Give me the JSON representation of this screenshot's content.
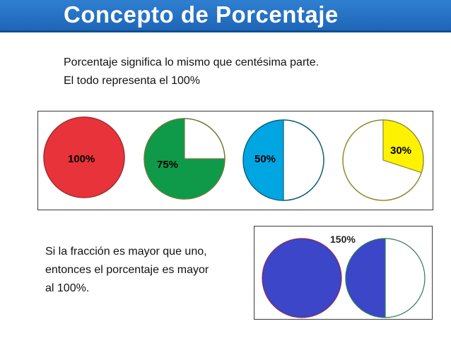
{
  "slide": {
    "title": "Concepto de Porcentaje",
    "intro_lines": [
      "Porcentaje significa lo mismo que centésima parte.",
      "El todo representa el 100%"
    ],
    "pies": [
      {
        "label": "100%",
        "percent": 100,
        "fill": "#e8333a",
        "stroke": "#9b2c2c",
        "label_color": "#222222"
      },
      {
        "label": "75%",
        "percent": 75,
        "fill": "#0f9a49",
        "stroke": "#6f7a3a",
        "label_color": "#222222"
      },
      {
        "label": "50%",
        "percent": 50,
        "fill": "#00a6e2",
        "stroke": "#0d5d74",
        "label_color": "#222222"
      },
      {
        "label": "30%",
        "percent": 30,
        "fill": "#fff200",
        "stroke": "#8c8c30",
        "label_color": "#222222"
      }
    ],
    "fraction_lines": [
      "Si la fracción es mayor que uno,",
      "entonces el porcentaje es mayor",
      "al 100%."
    ],
    "over_label": "150%",
    "over_percent": 150,
    "over_fill": "#3b46c9"
  }
}
